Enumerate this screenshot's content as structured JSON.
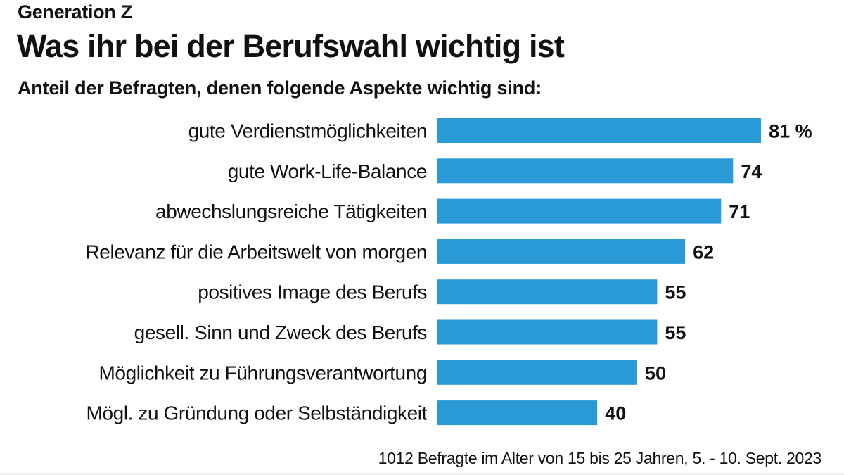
{
  "kicker": "Generation Z",
  "title": "Was ihr bei der Berufswahl wichtig ist",
  "subtitle": "Anteil der Befragten, denen folgende Aspekte wichtig sind:",
  "note": "1012 Befragte im Alter von 15 bis 25 Jahren, 5. - 10. Sept. 2023",
  "chart_data": {
    "type": "bar",
    "orientation": "horizontal",
    "categories": [
      "gute Verdienstmöglichkeiten",
      "gute Work-Life-Balance",
      "abwechslungsreiche Tätigkeiten",
      "Relevanz für die Arbeitswelt von morgen",
      "positives Image des Berufs",
      "gesell. Sinn und Zweck des Berufs",
      "Möglichkeit zu Führungsverantwortung",
      "Mögl. zu Gründung oder Selbständigkeit"
    ],
    "values": [
      81,
      74,
      71,
      62,
      55,
      55,
      50,
      40
    ],
    "data_labels": [
      "81 %",
      "74",
      "71",
      "62",
      "55",
      "55",
      "50",
      "40"
    ],
    "unit": "%",
    "xlim": [
      0,
      100
    ],
    "grid": false,
    "legend": "none",
    "bar_color": "#2a9ad6"
  }
}
